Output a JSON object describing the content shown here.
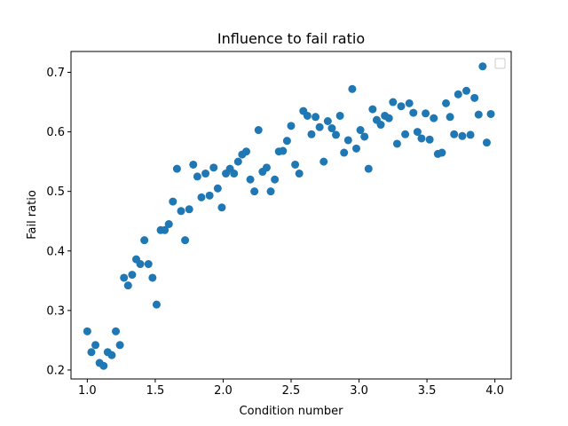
{
  "chart_data": {
    "type": "scatter",
    "title": "Influence to fail ratio",
    "xlabel": "Condition number",
    "ylabel": "Fail ratio",
    "xlim": [
      0.88,
      4.12
    ],
    "ylim": [
      0.185,
      0.735
    ],
    "xticks": [
      1.0,
      1.5,
      2.0,
      2.5,
      3.0,
      3.5,
      4.0
    ],
    "xtick_labels": [
      "1.0",
      "1.5",
      "2.0",
      "2.5",
      "3.0",
      "3.5",
      "4.0"
    ],
    "yticks": [
      0.2,
      0.3,
      0.4,
      0.5,
      0.6,
      0.7
    ],
    "ytick_labels": [
      "0.2",
      "0.3",
      "0.4",
      "0.5",
      "0.6",
      "0.7"
    ],
    "grid": false,
    "legend": "top-right (empty)",
    "marker_color": "#1f77b4",
    "series": [
      {
        "points": [
          [
            1.0,
            0.265
          ],
          [
            1.03,
            0.23
          ],
          [
            1.06,
            0.242
          ],
          [
            1.09,
            0.212
          ],
          [
            1.12,
            0.207
          ],
          [
            1.15,
            0.23
          ],
          [
            1.18,
            0.225
          ],
          [
            1.21,
            0.265
          ],
          [
            1.24,
            0.242
          ],
          [
            1.27,
            0.355
          ],
          [
            1.3,
            0.342
          ],
          [
            1.33,
            0.36
          ],
          [
            1.36,
            0.386
          ],
          [
            1.39,
            0.378
          ],
          [
            1.42,
            0.418
          ],
          [
            1.45,
            0.378
          ],
          [
            1.48,
            0.355
          ],
          [
            1.51,
            0.31
          ],
          [
            1.54,
            0.435
          ],
          [
            1.57,
            0.435
          ],
          [
            1.6,
            0.445
          ],
          [
            1.63,
            0.483
          ],
          [
            1.66,
            0.538
          ],
          [
            1.69,
            0.467
          ],
          [
            1.72,
            0.418
          ],
          [
            1.75,
            0.47
          ],
          [
            1.78,
            0.545
          ],
          [
            1.81,
            0.525
          ],
          [
            1.84,
            0.49
          ],
          [
            1.87,
            0.53
          ],
          [
            1.9,
            0.493
          ],
          [
            1.93,
            0.54
          ],
          [
            1.96,
            0.505
          ],
          [
            1.99,
            0.473
          ],
          [
            2.02,
            0.53
          ],
          [
            2.05,
            0.538
          ],
          [
            2.08,
            0.53
          ],
          [
            2.11,
            0.55
          ],
          [
            2.14,
            0.562
          ],
          [
            2.17,
            0.567
          ],
          [
            2.2,
            0.52
          ],
          [
            2.23,
            0.5
          ],
          [
            2.26,
            0.603
          ],
          [
            2.29,
            0.533
          ],
          [
            2.32,
            0.54
          ],
          [
            2.35,
            0.5
          ],
          [
            2.38,
            0.52
          ],
          [
            2.41,
            0.567
          ],
          [
            2.44,
            0.568
          ],
          [
            2.47,
            0.585
          ],
          [
            2.5,
            0.61
          ],
          [
            2.53,
            0.545
          ],
          [
            2.56,
            0.53
          ],
          [
            2.59,
            0.635
          ],
          [
            2.62,
            0.627
          ],
          [
            2.65,
            0.596
          ],
          [
            2.68,
            0.625
          ],
          [
            2.71,
            0.608
          ],
          [
            2.74,
            0.55
          ],
          [
            2.77,
            0.618
          ],
          [
            2.8,
            0.606
          ],
          [
            2.83,
            0.595
          ],
          [
            2.86,
            0.627
          ],
          [
            2.89,
            0.565
          ],
          [
            2.92,
            0.586
          ],
          [
            2.95,
            0.672
          ],
          [
            2.98,
            0.572
          ],
          [
            3.01,
            0.603
          ],
          [
            3.04,
            0.592
          ],
          [
            3.07,
            0.538
          ],
          [
            3.1,
            0.638
          ],
          [
            3.13,
            0.62
          ],
          [
            3.16,
            0.612
          ],
          [
            3.19,
            0.627
          ],
          [
            3.22,
            0.623
          ],
          [
            3.25,
            0.65
          ],
          [
            3.28,
            0.58
          ],
          [
            3.31,
            0.643
          ],
          [
            3.34,
            0.596
          ],
          [
            3.37,
            0.648
          ],
          [
            3.4,
            0.632
          ],
          [
            3.43,
            0.6
          ],
          [
            3.46,
            0.589
          ],
          [
            3.49,
            0.631
          ],
          [
            3.52,
            0.587
          ],
          [
            3.55,
            0.623
          ],
          [
            3.58,
            0.563
          ],
          [
            3.61,
            0.565
          ],
          [
            3.64,
            0.648
          ],
          [
            3.67,
            0.625
          ],
          [
            3.7,
            0.596
          ],
          [
            3.73,
            0.663
          ],
          [
            3.76,
            0.593
          ],
          [
            3.79,
            0.669
          ],
          [
            3.82,
            0.595
          ],
          [
            3.85,
            0.657
          ],
          [
            3.88,
            0.629
          ],
          [
            3.91,
            0.71
          ],
          [
            3.94,
            0.582
          ],
          [
            3.97,
            0.63
          ]
        ]
      }
    ]
  }
}
